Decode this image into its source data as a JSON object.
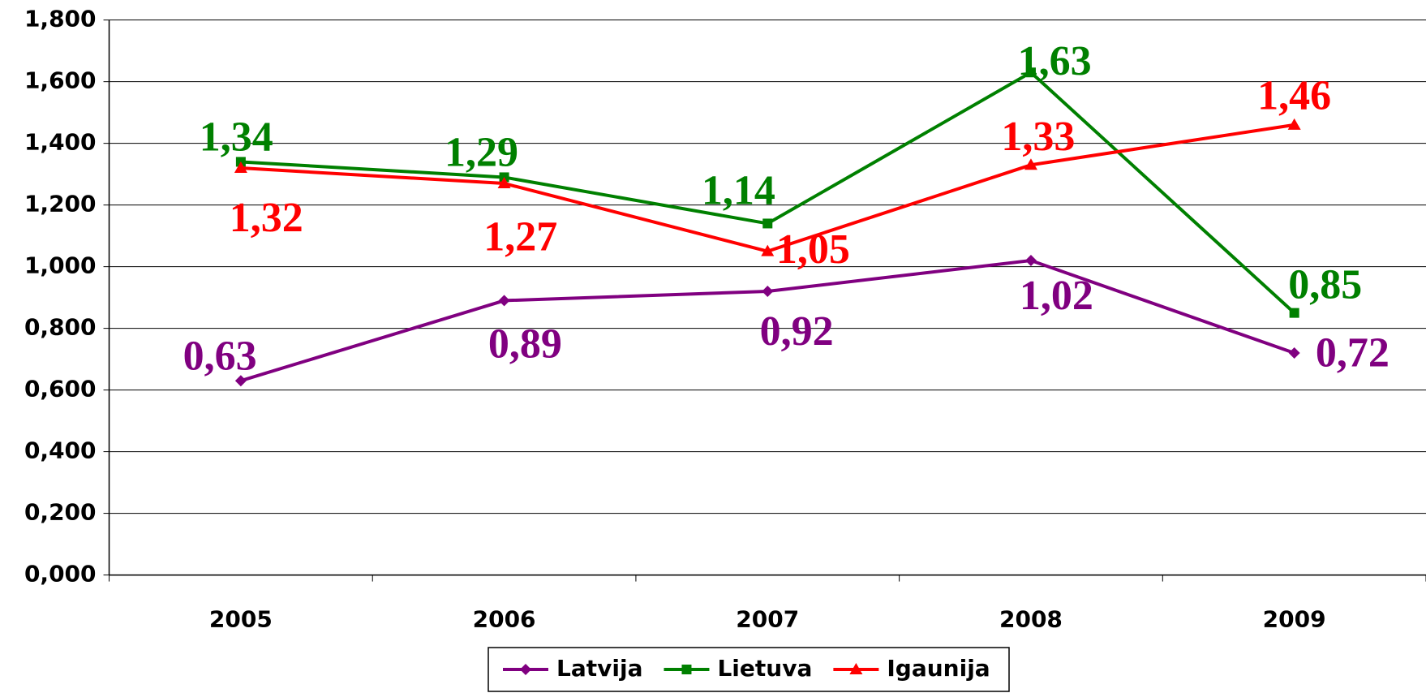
{
  "chart_data": {
    "type": "line",
    "categories": [
      "2005",
      "2006",
      "2007",
      "2008",
      "2009"
    ],
    "series": [
      {
        "name": "Latvija",
        "color": "#800080",
        "marker": "diamond",
        "values": [
          0.63,
          0.89,
          0.92,
          1.02,
          0.72
        ],
        "value_labels": [
          "0,63",
          "0,89",
          "0,92",
          "1,02",
          "0,72"
        ]
      },
      {
        "name": "Lietuva",
        "color": "#008000",
        "marker": "square",
        "values": [
          1.34,
          1.29,
          1.14,
          1.63,
          0.85
        ],
        "value_labels": [
          "1,34",
          "1,29",
          "1,14",
          "1,63",
          "0,85"
        ]
      },
      {
        "name": "Igaunija",
        "color": "#ff0000",
        "marker": "triangle",
        "values": [
          1.32,
          1.27,
          1.05,
          1.33,
          1.46
        ],
        "value_labels": [
          "1,32",
          "1,27",
          "1,05",
          "1,33",
          "1,46"
        ]
      }
    ],
    "ylim": [
      0,
      1.8
    ],
    "yticks": [
      {
        "value": 0,
        "label": "0,000"
      },
      {
        "value": 0.2,
        "label": "0,200"
      },
      {
        "value": 0.4,
        "label": "0,400"
      },
      {
        "value": 0.6,
        "label": "0,600"
      },
      {
        "value": 0.8,
        "label": "0,800"
      },
      {
        "value": 1,
        "label": "1,000"
      },
      {
        "value": 1.2,
        "label": "1,200"
      },
      {
        "value": 1.4,
        "label": "1,400"
      },
      {
        "value": 1.6,
        "label": "1,600"
      },
      {
        "value": 1.8,
        "label": "1,800"
      }
    ],
    "grid": true,
    "legend": "bottom"
  }
}
